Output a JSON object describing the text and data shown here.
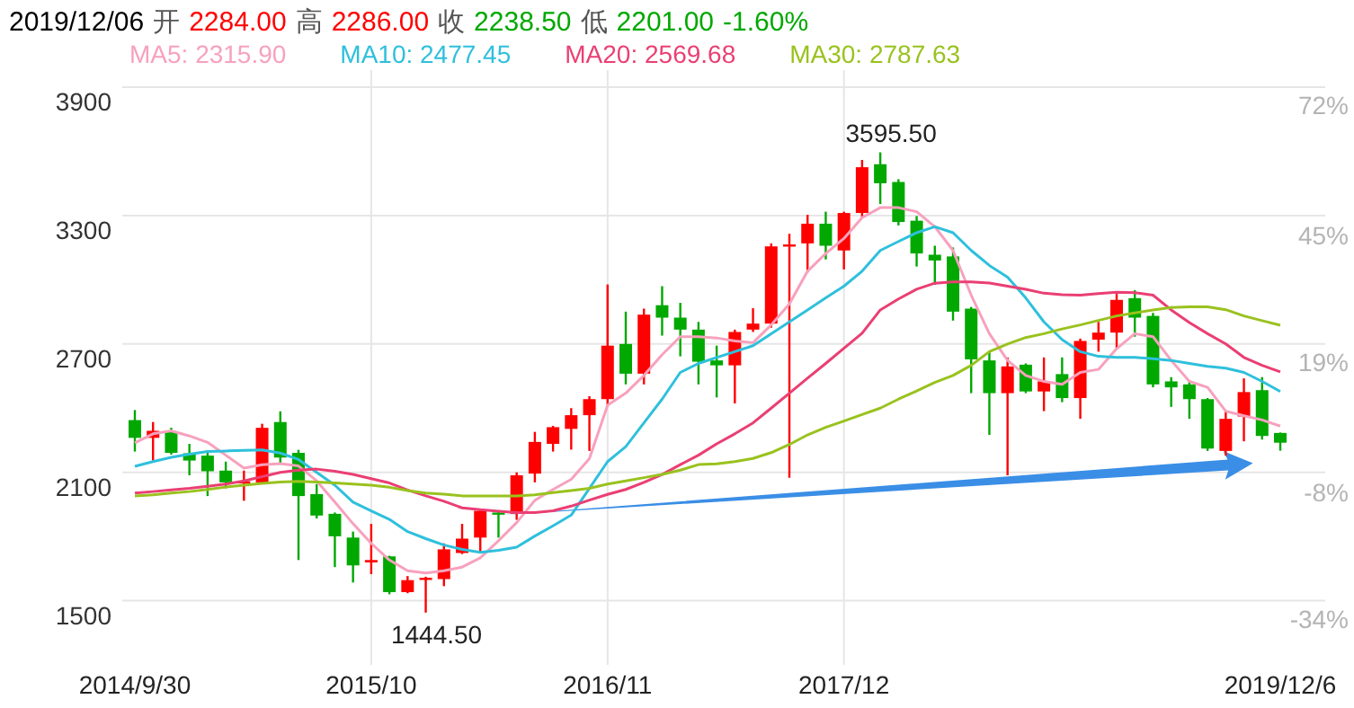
{
  "chart_data": {
    "type": "candlestick",
    "annotations": [
      "2019/12/06",
      "开",
      "2284.00",
      "高",
      "2286.00",
      "收",
      "2238.50",
      "低",
      "2201.00",
      "-1.60%",
      "3595.50",
      "1444.50"
    ],
    "categories": [
      "2014/9/30",
      null,
      null,
      null,
      null,
      null,
      null,
      null,
      null,
      null,
      null,
      null,
      null,
      "2015/10",
      null,
      null,
      null,
      null,
      null,
      null,
      null,
      null,
      null,
      null,
      null,
      null,
      "2016/11",
      null,
      null,
      null,
      null,
      null,
      null,
      null,
      null,
      null,
      null,
      null,
      null,
      "2017/12",
      null,
      null,
      null,
      null,
      null,
      null,
      null,
      null,
      null,
      null,
      null,
      null,
      null,
      null,
      null,
      null,
      null,
      null,
      null,
      null,
      null,
      null,
      null,
      "2019/12/6"
    ],
    "ohlc": [
      [
        2344,
        2391,
        2197,
        2261
      ],
      [
        2261,
        2335,
        2155,
        2294
      ],
      [
        2288,
        2308,
        2183,
        2191
      ],
      [
        2189,
        2233,
        2086,
        2155
      ],
      [
        2178,
        2191,
        1989,
        2105
      ],
      [
        2108,
        2150,
        2025,
        2053
      ],
      [
        2053,
        2108,
        1967,
        2058
      ],
      [
        2053,
        2327,
        2050,
        2308
      ],
      [
        2335,
        2385,
        2141,
        2169
      ],
      [
        2191,
        2205,
        1690,
        1989
      ],
      [
        1998,
        2045,
        1884,
        1898
      ],
      [
        1906,
        1912,
        1657,
        1801
      ],
      [
        1795,
        1823,
        1585,
        1665
      ],
      [
        1679,
        1859,
        1624,
        1690
      ],
      [
        1707,
        1710,
        1530,
        1540
      ],
      [
        1540,
        1615,
        1535,
        1596
      ],
      [
        1601,
        1612,
        1444.5,
        1607
      ],
      [
        1601,
        1768,
        1568,
        1740
      ],
      [
        1723,
        1859,
        1718,
        1790
      ],
      [
        1795,
        1925,
        1726,
        1920
      ],
      [
        1912,
        1917,
        1795,
        1906
      ],
      [
        1906,
        2100,
        1878,
        2086
      ],
      [
        2094,
        2289,
        2053,
        2242
      ],
      [
        2233,
        2317,
        2197,
        2311
      ],
      [
        2303,
        2400,
        2206,
        2367
      ],
      [
        2367,
        2456,
        2200,
        2442
      ],
      [
        2442,
        2978,
        2414,
        2692
      ],
      [
        2700,
        2851,
        2511,
        2561
      ],
      [
        2561,
        2865,
        2511,
        2837
      ],
      [
        2881,
        2970,
        2739,
        2823
      ],
      [
        2823,
        2892,
        2642,
        2767
      ],
      [
        2767,
        2803,
        2511,
        2617
      ],
      [
        2623,
        2692,
        2450,
        2600
      ],
      [
        2600,
        2767,
        2422,
        2756
      ],
      [
        2767,
        2867,
        2756,
        2795
      ],
      [
        2795,
        3170,
        2776,
        3156
      ],
      [
        3159,
        3215,
        2075,
        3165
      ],
      [
        3170,
        3304,
        3034,
        3262
      ],
      [
        3262,
        3318,
        3095,
        3159
      ],
      [
        3137,
        3318,
        3048,
        3312
      ],
      [
        3312,
        3560,
        3290,
        3526
      ],
      [
        3540,
        3595.5,
        3354,
        3451
      ],
      [
        3457,
        3470,
        3254,
        3270
      ],
      [
        3276,
        3298,
        3062,
        3123
      ],
      [
        3117,
        3159,
        2976,
        3090
      ],
      [
        3109,
        3151,
        2809,
        2851
      ],
      [
        2865,
        2873,
        2470,
        2628
      ],
      [
        2623,
        2664,
        2275,
        2470
      ],
      [
        2470,
        2637,
        2086,
        2595
      ],
      [
        2603,
        2609,
        2470,
        2478
      ],
      [
        2478,
        2637,
        2386,
        2525
      ],
      [
        2559,
        2637,
        2428,
        2447
      ],
      [
        2447,
        2725,
        2350,
        2714
      ],
      [
        2720,
        2803,
        2664,
        2753
      ],
      [
        2753,
        2934,
        2678,
        2906
      ],
      [
        2914,
        2951,
        2734,
        2823
      ],
      [
        2831,
        2845,
        2497,
        2511
      ],
      [
        2525,
        2545,
        2406,
        2497
      ],
      [
        2511,
        2525,
        2350,
        2442
      ],
      [
        2442,
        2447,
        2200,
        2211
      ],
      [
        2200,
        2386,
        2178,
        2350
      ],
      [
        2361,
        2539,
        2245,
        2475
      ],
      [
        2484,
        2545,
        2253,
        2270
      ],
      [
        2284,
        2286,
        2201,
        2238.5
      ]
    ],
    "colors": [
      "#00a800",
      "#ff0000",
      "#00a800",
      "#00a800",
      "#00a800",
      "#00a800",
      "#ff0000",
      "#ff0000",
      "#00a800",
      "#00a800",
      "#00a800",
      "#00a800",
      "#00a800",
      "#ff0000",
      "#00a800",
      "#ff0000",
      "#ff0000",
      "#ff0000",
      "#ff0000",
      "#ff0000",
      "#00a800",
      "#ff0000",
      "#ff0000",
      "#ff0000",
      "#ff0000",
      "#ff0000",
      "#ff0000",
      "#00a800",
      "#ff0000",
      "#00a800",
      "#00a800",
      "#00a800",
      "#00a800",
      "#ff0000",
      "#ff0000",
      "#ff0000",
      "#ff0000",
      "#ff0000",
      "#00a800",
      "#ff0000",
      "#ff0000",
      "#00a800",
      "#00a800",
      "#00a800",
      "#00a800",
      "#00a800",
      "#00a800",
      "#00a800",
      "#ff0000",
      "#00a800",
      "#ff0000",
      "#00a800",
      "#ff0000",
      "#ff0000",
      "#ff0000",
      "#00a800",
      "#00a800",
      "#00a800",
      "#00a800",
      "#00a800",
      "#ff0000",
      "#ff0000",
      "#00a800",
      "#00a800"
    ],
    "series": [
      {
        "name": "MA5: 2315.90",
        "type": "line",
        "color": "#f7a1bd",
        "values": [
          2238,
          2280,
          2294,
          2270,
          2240,
          2180,
          2120,
          2135,
          2141,
          2130,
          2060,
          1961,
          1860,
          1768,
          1690,
          1640,
          1629,
          1640,
          1657,
          1700,
          1780,
          1865,
          1969,
          2020,
          2067,
          2164,
          2414,
          2470,
          2553,
          2650,
          2734,
          2734,
          2728,
          2714,
          2706,
          2789,
          2887,
          3040,
          3123,
          3193,
          3290,
          3337,
          3337,
          3318,
          3248,
          3137,
          2928,
          2748,
          2623,
          2553,
          2525,
          2511,
          2567,
          2581,
          2678,
          2748,
          2734,
          2623,
          2525,
          2497,
          2386,
          2364,
          2345,
          2315.9
        ]
      },
      {
        "name": "MA10: 2477.45",
        "type": "line",
        "color": "#2ec0dc",
        "values": [
          2128,
          2150,
          2170,
          2185,
          2197,
          2200,
          2203,
          2205,
          2190,
          2160,
          2100,
          2040,
          1961,
          1920,
          1880,
          1823,
          1790,
          1760,
          1740,
          1726,
          1735,
          1750,
          1802,
          1850,
          1900,
          2025,
          2150,
          2220,
          2331,
          2442,
          2567,
          2609,
          2637,
          2664,
          2692,
          2748,
          2803,
          2859,
          2915,
          2970,
          3040,
          3137,
          3179,
          3220,
          3248,
          3220,
          3137,
          3067,
          3012,
          2915,
          2803,
          2720,
          2664,
          2642,
          2637,
          2637,
          2631,
          2623,
          2609,
          2595,
          2587,
          2567,
          2525,
          2477.45
        ]
      },
      {
        "name": "MA20: 2569.68",
        "type": "line",
        "color": "#ea3f73",
        "values": [
          2003,
          2010,
          2018,
          2025,
          2035,
          2045,
          2060,
          2080,
          2100,
          2110,
          2115,
          2105,
          2090,
          2070,
          2050,
          2017,
          1990,
          1965,
          1934,
          1925,
          1918,
          1912,
          1912,
          1920,
          1942,
          1970,
          1997,
          2020,
          2053,
          2090,
          2136,
          2180,
          2233,
          2280,
          2331,
          2400,
          2470,
          2540,
          2609,
          2680,
          2750,
          2859,
          2910,
          2956,
          2984,
          2990,
          2990,
          2985,
          2970,
          2955,
          2937,
          2930,
          2928,
          2935,
          2942,
          2940,
          2928,
          2859,
          2800,
          2748,
          2700,
          2637,
          2600,
          2569.68
        ]
      },
      {
        "name": "MA30: 2787.63",
        "type": "line",
        "color": "#99c21e",
        "values": [
          1989,
          1995,
          2003,
          2010,
          2020,
          2031,
          2040,
          2048,
          2055,
          2058,
          2055,
          2050,
          2045,
          2040,
          2030,
          2015,
          2003,
          1998,
          1990,
          1989,
          1989,
          1990,
          1995,
          2005,
          2015,
          2025,
          2045,
          2060,
          2075,
          2090,
          2110,
          2136,
          2140,
          2150,
          2165,
          2192,
          2230,
          2275,
          2310,
          2340,
          2370,
          2400,
          2442,
          2480,
          2520,
          2553,
          2600,
          2664,
          2700,
          2730,
          2748,
          2770,
          2789,
          2810,
          2831,
          2845,
          2859,
          2870,
          2873,
          2873,
          2860,
          2831,
          2809,
          2787.63
        ]
      }
    ],
    "ylim": [
      1200,
      3980
    ],
    "yticks": [
      1500,
      2100,
      2700,
      3300,
      3900
    ],
    "y2lim": [
      -47.25,
      75.5
    ],
    "y2ticks": [
      {
        "value": -34,
        "label": "-34%"
      },
      {
        "value": -8,
        "label": "-8%"
      },
      {
        "value": 19,
        "label": "19%"
      },
      {
        "value": 45,
        "label": "45%"
      },
      {
        "value": 72,
        "label": "72%"
      }
    ],
    "grid": true,
    "legend": "top"
  }
}
